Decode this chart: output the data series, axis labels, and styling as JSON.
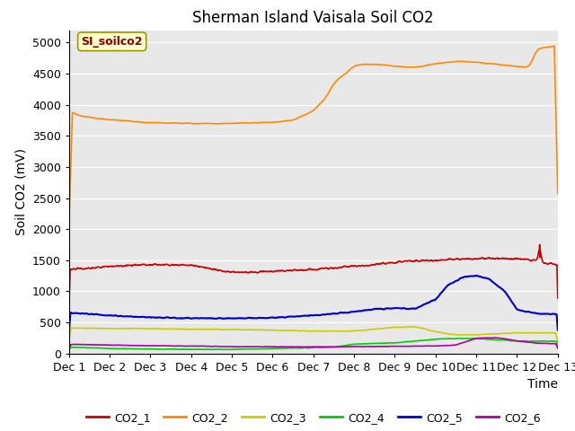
{
  "title": "Sherman Island Vaisala Soil CO2",
  "ylabel": "Soil CO2 (mV)",
  "xlabel": "Time",
  "annotation": "SI_soilco2",
  "xlim": [
    0,
    12
  ],
  "ylim": [
    0,
    5200
  ],
  "yticks": [
    0,
    500,
    1000,
    1500,
    2000,
    2500,
    3000,
    3500,
    4000,
    4500,
    5000
  ],
  "xtick_labels": [
    "Dec 1",
    "Dec 2",
    "Dec 3",
    "Dec 4",
    "Dec 5",
    "Dec 6",
    "Dec 7",
    "Dec 8",
    "Dec 9",
    "Dec 10",
    "Dec 11",
    "Dec 12",
    "Dec 13"
  ],
  "colors": {
    "CO2_1": "#cc0000",
    "CO2_2": "#ff8800",
    "CO2_3": "#cccc00",
    "CO2_4": "#00cc00",
    "CO2_5": "#0000cc",
    "CO2_6": "#aa00aa"
  },
  "legend_labels": [
    "CO2_1",
    "CO2_2",
    "CO2_3",
    "CO2_4",
    "CO2_5",
    "CO2_6"
  ],
  "bg_color": "#e8e8e8",
  "fig_bg": "#ffffff",
  "title_fontsize": 12,
  "label_fontsize": 10,
  "tick_fontsize": 9
}
